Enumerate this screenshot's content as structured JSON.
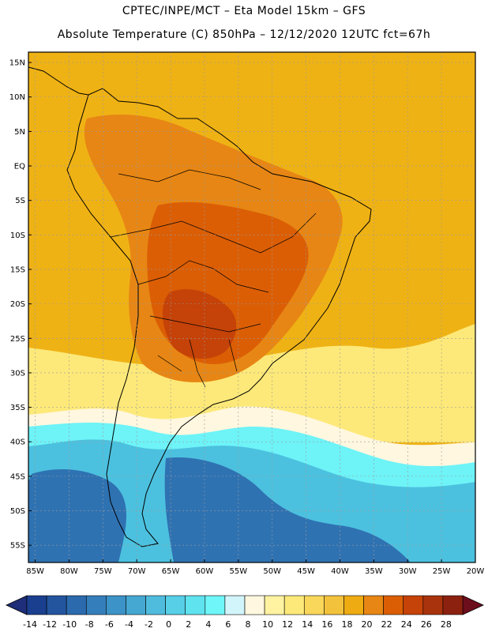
{
  "header": {
    "line1": "CPTEC/INPE/MCT –  Eta Model 15km – GFS",
    "line2": "Absolute Temperature (C) 850hPa – 12/12/2020 12UTC fct=67h"
  },
  "axes": {
    "lat_labels": [
      "15N",
      "10N",
      "5N",
      "EQ",
      "5S",
      "10S",
      "15S",
      "20S",
      "25S",
      "30S",
      "35S",
      "40S",
      "45S",
      "50S",
      "55S"
    ],
    "lon_labels": [
      "85W",
      "80W",
      "75W",
      "70W",
      "65W",
      "60W",
      "55W",
      "50W",
      "45W",
      "40W",
      "35W",
      "30W",
      "25W",
      "20W"
    ],
    "lat_range": [
      16.5,
      -57.5
    ],
    "lon_range": [
      -86,
      -20
    ]
  },
  "colorbar": {
    "labels": [
      "-14",
      "-12",
      "-10",
      "-8",
      "-6",
      "-4",
      "-2",
      "0",
      "2",
      "4",
      "6",
      "8",
      "10",
      "12",
      "14",
      "16",
      "18",
      "20",
      "22",
      "24",
      "26",
      "28"
    ],
    "colors": [
      "#1a3f8f",
      "#23559f",
      "#2c6aae",
      "#347fbb",
      "#3c93c7",
      "#45a8d2",
      "#4fbcdd",
      "#56cfe7",
      "#5fe3ef",
      "#6ff6f8",
      "#d2f5fb",
      "#fff7df",
      "#fff2a0",
      "#fde979",
      "#f9d75a",
      "#f3c23d",
      "#eeab12",
      "#e78614",
      "#db5e05",
      "#c54208",
      "#a8330d",
      "#8c2110"
    ],
    "left_arrow_color": "#1f2e78",
    "right_arrow_color": "#6d0e1d"
  },
  "field": {
    "base_color": "#efb215",
    "zones": [
      {
        "name": "southern-cold",
        "color": "#4cc1df"
      },
      {
        "name": "deep-cold",
        "color": "#2f72b2"
      },
      {
        "name": "cyan-band",
        "color": "#6ef3f7"
      },
      {
        "name": "pale-band",
        "color": "#fff7df"
      },
      {
        "name": "yellow-band",
        "color": "#fde979"
      },
      {
        "name": "warm-interior",
        "color": "#e78614"
      },
      {
        "name": "hot-core",
        "color": "#db5e05"
      },
      {
        "name": "hottest-core",
        "color": "#c54208"
      }
    ]
  }
}
